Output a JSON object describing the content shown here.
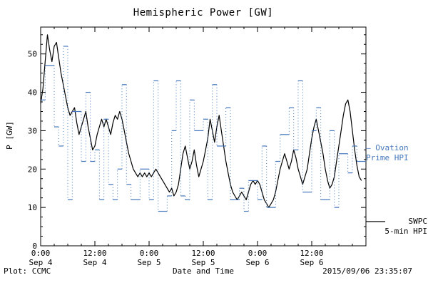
{
  "footer": {
    "left": "Plot: CCMC",
    "right": "2015/09/06 23:35:07"
  },
  "legend": {
    "ovation_line1": "– Ovation",
    "ovation_line2": "Prime HPI",
    "swpc_line1": "SWPC",
    "swpc_line2": "5-min HPI"
  },
  "colors": {
    "ovation": "#4477bb",
    "swpc": "#000000"
  },
  "chart_data": {
    "type": "line",
    "title": "Hemispheric Power [GW]",
    "xlabel": "Date and Time",
    "ylabel": "P [GW]",
    "ylim": [
      0,
      57
    ],
    "xlim_hours": [
      0,
      72
    ],
    "grid": false,
    "y_ticks": [
      0,
      10,
      20,
      30,
      40,
      50
    ],
    "x_ticks": [
      {
        "hour": 0,
        "time": "0:00",
        "date": "Sep 4"
      },
      {
        "hour": 12,
        "time": "12:00",
        "date": "Sep 4"
      },
      {
        "hour": 24,
        "time": "0:00",
        "date": "Sep 5"
      },
      {
        "hour": 36,
        "time": "12:00",
        "date": "Sep 5"
      },
      {
        "hour": 48,
        "time": "0:00",
        "date": "Sep 6"
      },
      {
        "hour": 60,
        "time": "12:00",
        "date": "Sep 6"
      }
    ],
    "series": [
      {
        "name": "SWPC 5-min HPI",
        "color": "#000000",
        "style": "solid",
        "x_start": 0,
        "x_step": 0.5,
        "values": [
          37,
          41,
          48,
          55,
          51,
          48,
          52,
          53,
          49,
          45,
          42,
          39,
          36,
          34,
          35,
          36,
          32,
          29,
          31,
          33,
          35,
          31,
          28,
          25,
          26,
          29,
          31,
          33,
          31,
          33,
          31,
          29,
          32,
          34,
          33,
          35,
          33,
          30,
          27,
          24,
          22,
          20,
          19,
          18,
          19,
          18,
          19,
          18,
          19,
          18,
          19,
          20,
          19,
          18,
          17,
          16,
          15,
          14,
          15,
          13,
          14,
          16,
          20,
          24,
          26,
          23,
          20,
          22,
          25,
          21,
          18,
          20,
          22,
          25,
          28,
          33,
          30,
          27,
          31,
          34,
          30,
          26,
          22,
          19,
          16,
          14,
          13,
          12,
          13,
          14,
          13,
          12,
          14,
          16,
          17,
          16,
          17,
          16,
          14,
          12,
          11,
          10,
          11,
          12,
          14,
          17,
          20,
          22,
          24,
          22,
          20,
          22,
          25,
          23,
          20,
          18,
          16,
          18,
          20,
          24,
          28,
          31,
          33,
          30,
          27,
          24,
          20,
          17,
          15,
          16,
          18,
          22,
          26,
          30,
          34,
          37,
          38,
          35,
          30,
          25,
          21,
          18,
          17
        ]
      },
      {
        "name": "Ovation Prime HPI",
        "color": "#4477bb",
        "style": "step-dotted",
        "x": [
          0,
          1,
          3,
          4,
          5,
          6,
          7,
          9,
          10,
          11,
          12,
          13,
          14,
          15,
          16,
          17,
          18,
          19,
          20,
          22,
          24,
          25,
          26,
          28,
          29,
          30,
          31,
          32,
          33,
          34,
          36,
          37,
          38,
          39,
          41,
          42,
          44,
          45,
          46,
          48,
          49,
          50,
          52,
          53,
          55,
          56,
          57,
          58,
          60,
          61,
          62,
          64,
          65,
          66,
          68,
          69,
          70
        ],
        "y": [
          38,
          47,
          31,
          26,
          52,
          12,
          35,
          22,
          40,
          22,
          25,
          12,
          33,
          16,
          12,
          20,
          42,
          16,
          12,
          20,
          12,
          43,
          9,
          13,
          30,
          43,
          13,
          12,
          38,
          30,
          33,
          12,
          42,
          26,
          36,
          12,
          15,
          9,
          17,
          12,
          26,
          10,
          22,
          29,
          36,
          25,
          43,
          14,
          30,
          36,
          12,
          30,
          10,
          24,
          19,
          26,
          22
        ]
      }
    ]
  }
}
